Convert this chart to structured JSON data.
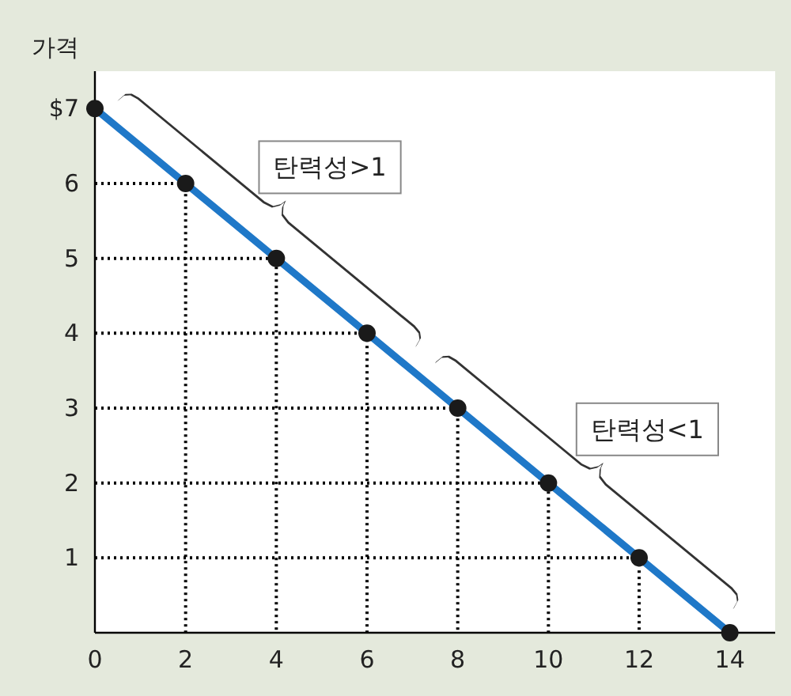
{
  "chart_data": {
    "type": "line",
    "ylabel": "가격",
    "x": [
      0,
      2,
      4,
      6,
      8,
      10,
      12,
      14
    ],
    "series": [
      {
        "color": "#1f78c8",
        "values": [
          7,
          6,
          5,
          4,
          3,
          2,
          1,
          0
        ],
        "marker": "circle",
        "line_style": "solid"
      },
      {
        "color": "#000000",
        "x": [
          0,
          2,
          2
        ],
        "values": [
          6,
          6,
          0
        ],
        "marker": "none",
        "line_style": "dotted"
      },
      {
        "color": "#000000",
        "x": [
          0,
          4,
          4
        ],
        "values": [
          5,
          5,
          0
        ],
        "marker": "none",
        "line_style": "dotted"
      },
      {
        "color": "#000000",
        "x": [
          0,
          6,
          6
        ],
        "values": [
          4,
          4,
          0
        ],
        "marker": "none",
        "line_style": "dotted"
      },
      {
        "color": "#000000",
        "x": [
          0,
          8,
          8
        ],
        "values": [
          3,
          3,
          0
        ],
        "marker": "none",
        "line_style": "dotted"
      },
      {
        "color": "#000000",
        "x": [
          0,
          10,
          10
        ],
        "values": [
          2,
          2,
          0
        ],
        "marker": "none",
        "line_style": "dotted"
      },
      {
        "color": "#000000",
        "x": [
          0,
          12,
          12
        ],
        "values": [
          1,
          1,
          0
        ],
        "marker": "none",
        "line_style": "dotted"
      }
    ],
    "xlim": [
      0,
      15
    ],
    "ylim": [
      0,
      7.5
    ],
    "xticks": [
      0,
      2,
      4,
      6,
      8,
      10,
      12,
      14
    ],
    "yticks": [
      1,
      2,
      3,
      4,
      5,
      6,
      {
        "value": 7,
        "label": "$7"
      }
    ],
    "annotations": [
      {
        "text": "탄력성>1",
        "x": 3.5,
        "y": 5.25
      },
      {
        "text": "탄력성<1",
        "x": 10.5,
        "y": 1.75
      }
    ]
  }
}
